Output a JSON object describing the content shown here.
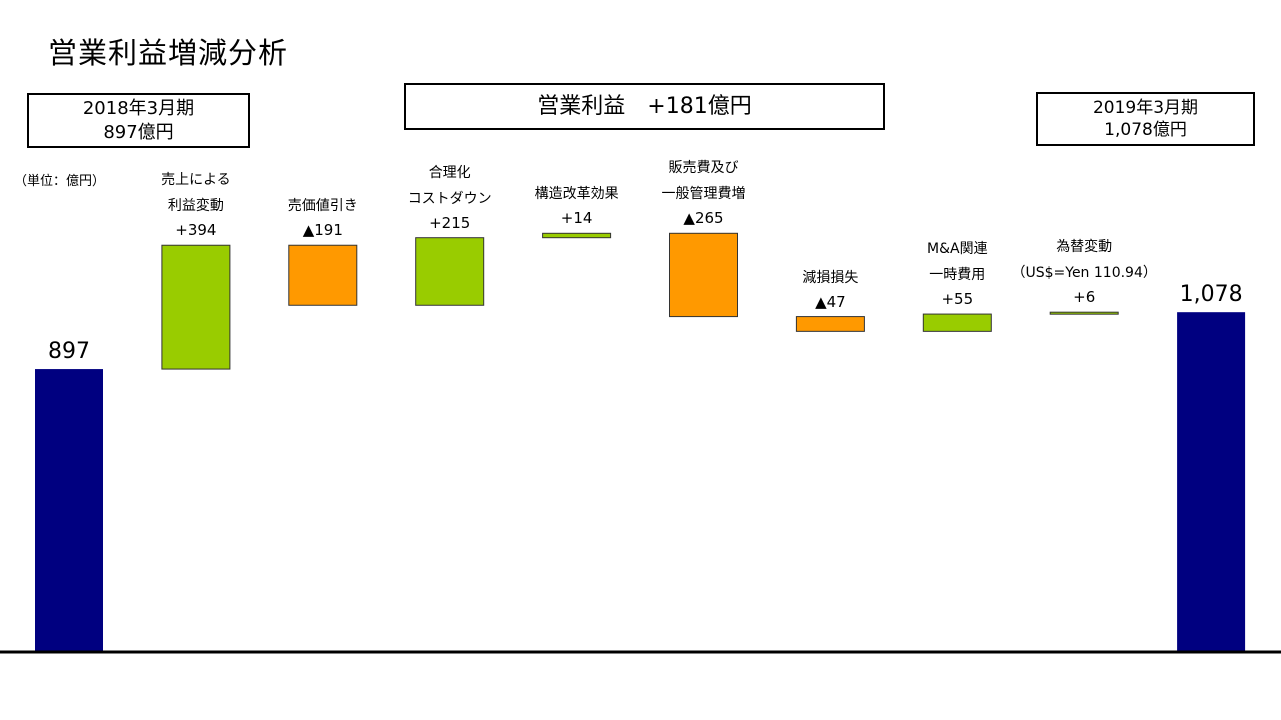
{
  "title": "営業利益増減分析",
  "boxes": {
    "left_line1": "2018年3月期",
    "left_line2": "897億円",
    "center": "営業利益　+181億円",
    "right_line1": "2019年3月期",
    "right_line2": "1,078億円"
  },
  "unit": "（単位：億円）",
  "colors": {
    "total": "#000080",
    "increase": "#99cc00",
    "decrease": "#ff9900",
    "axis": "#000000"
  },
  "chart_data": {
    "type": "waterfall",
    "ylim": [
      0,
      1200
    ],
    "bars": [
      {
        "lines": [],
        "value_label": "897",
        "kind": "total",
        "start": 0,
        "end": 897
      },
      {
        "lines": [
          "売上による",
          "利益変動"
        ],
        "value_label": "+394",
        "kind": "increase",
        "start": 897,
        "end": 1291
      },
      {
        "lines": [
          "売価値引き"
        ],
        "value_label": "▲191",
        "kind": "decrease",
        "start": 1291,
        "end": 1100
      },
      {
        "lines": [
          "合理化",
          "コストダウン"
        ],
        "value_label": "+215",
        "kind": "increase",
        "start": 1100,
        "end": 1315
      },
      {
        "lines": [
          "構造改革効果"
        ],
        "value_label": "+14",
        "kind": "increase",
        "start": 1315,
        "end": 1329
      },
      {
        "lines": [
          "販売費及び",
          "一般管理費増"
        ],
        "value_label": "▲265",
        "kind": "decrease",
        "start": 1329,
        "end": 1064
      },
      {
        "lines": [
          "減損損失"
        ],
        "value_label": "▲47",
        "kind": "decrease",
        "start": 1064,
        "end": 1017
      },
      {
        "lines": [
          "M&A関連",
          "一時費用"
        ],
        "value_label": "+55",
        "kind": "increase",
        "start": 1017,
        "end": 1072
      },
      {
        "lines": [
          "為替変動",
          "（US$=Yen 110.94）"
        ],
        "value_label": "+6",
        "kind": "increase",
        "start": 1072,
        "end": 1078
      },
      {
        "lines": [],
        "value_label": "1,078",
        "kind": "total",
        "start": 0,
        "end": 1078
      }
    ]
  }
}
